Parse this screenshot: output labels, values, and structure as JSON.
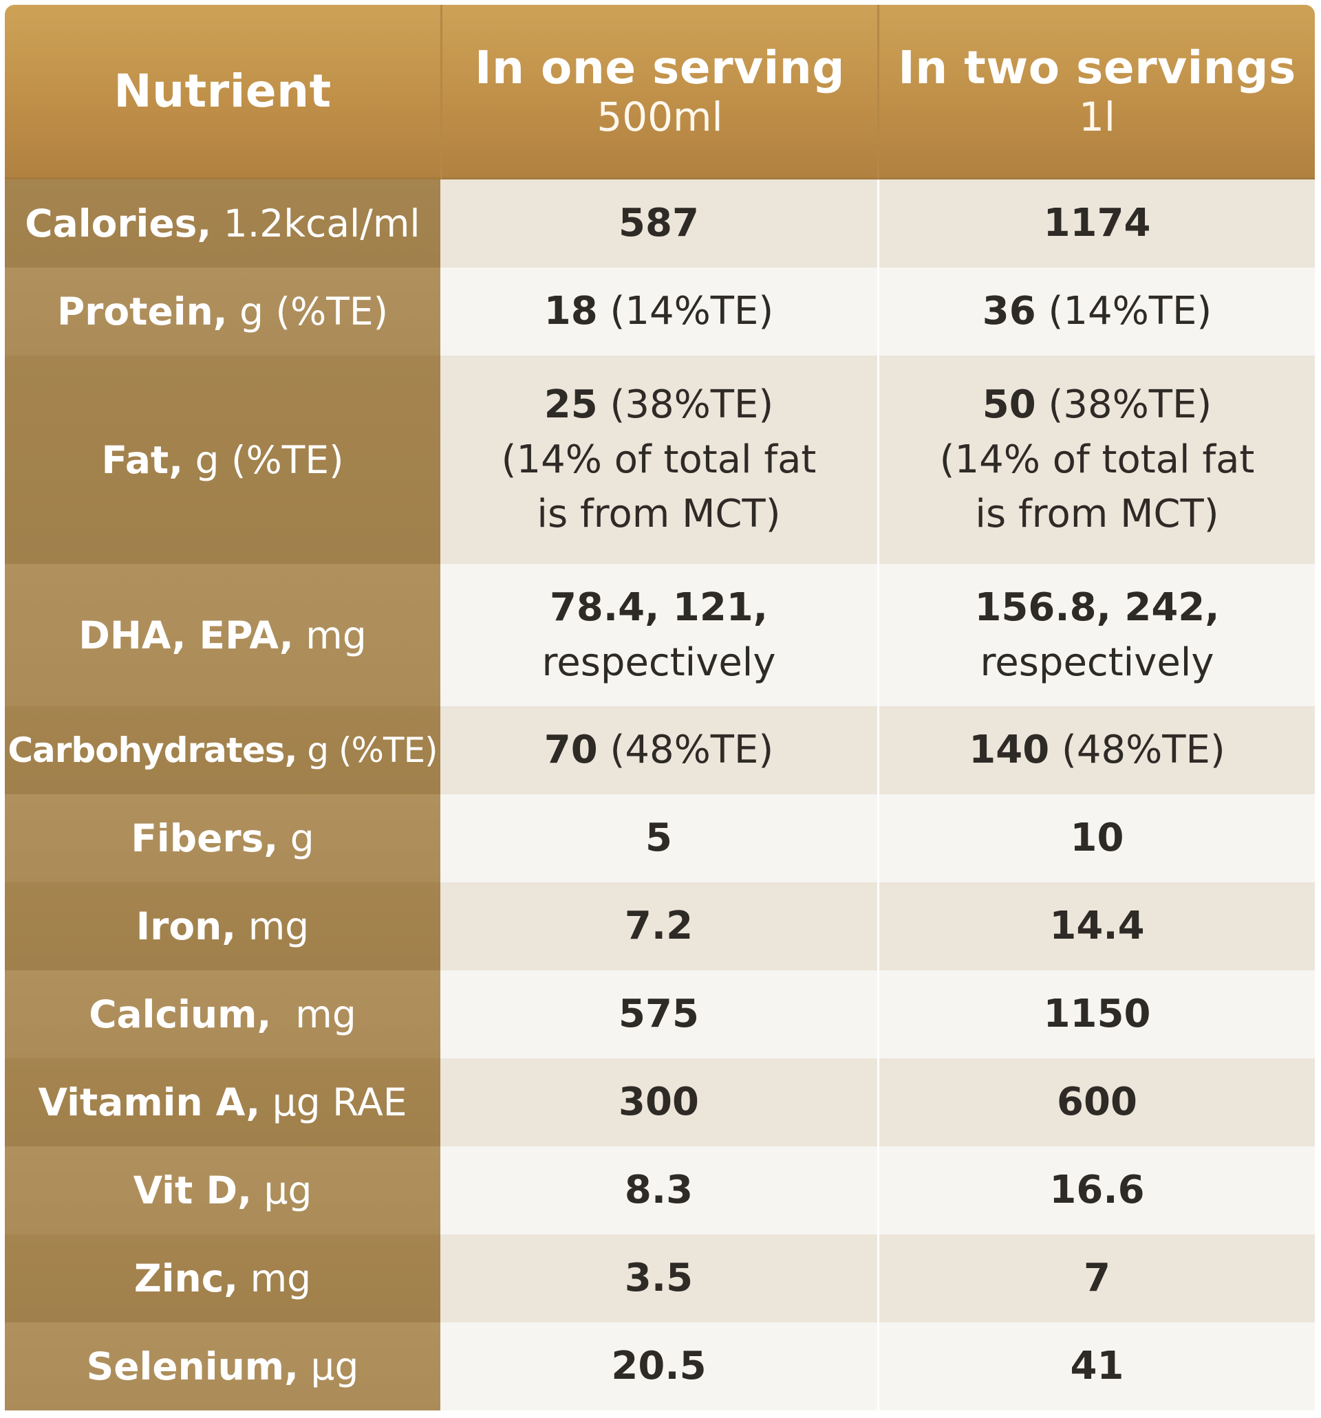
{
  "header": {
    "col0": "Nutrient",
    "col1_title": "In one serving",
    "col1_sub": "500ml",
    "col2_title": "In two servings",
    "col2_sub": "1l"
  },
  "rows": [
    {
      "label_bold": "Calories,",
      "label_unit": " 1.2kcal/ml",
      "v1_bold": "587",
      "v1_rest": "",
      "v2_bold": "1174",
      "v2_rest": ""
    },
    {
      "label_bold": "Protein,",
      "label_unit": " g (%TE)",
      "v1_bold": "18",
      "v1_rest": " (14%TE)",
      "v2_bold": "36",
      "v2_rest": " (14%TE)"
    },
    {
      "label_bold": "Fat,",
      "label_unit": " g (%TE)",
      "v1_bold": "25",
      "v1_rest": " (38%TE)",
      "v1_line2": "(14% of total fat",
      "v1_line3": "is from MCT)",
      "v2_bold": "50",
      "v2_rest": " (38%TE)",
      "v2_line2": "(14% of total fat",
      "v2_line3": "is from MCT)"
    },
    {
      "label_bold": "DHA, EPA,",
      "label_unit": " mg",
      "v1_bold": "78.4, 121,",
      "v1_line2": "respectively",
      "v2_bold": "156.8, 242,",
      "v2_line2": "respectively"
    },
    {
      "label_bold": "Carbohydrates,",
      "label_unit": " g (%TE)",
      "v1_bold": "70",
      "v1_rest": " (48%TE)",
      "v2_bold": "140",
      "v2_rest": " (48%TE)"
    },
    {
      "label_bold": "Fibers,",
      "label_unit": " g",
      "v1_bold": "5",
      "v1_rest": "",
      "v2_bold": "10",
      "v2_rest": ""
    },
    {
      "label_bold": "Iron,",
      "label_unit": " mg",
      "v1_bold": "7.2",
      "v1_rest": "",
      "v2_bold": "14.4",
      "v2_rest": ""
    },
    {
      "label_bold": "Calcium,",
      "label_unit": "  mg",
      "v1_bold": "575",
      "v1_rest": "",
      "v2_bold": "1150",
      "v2_rest": ""
    },
    {
      "label_bold": "Vitamin A,",
      "label_unit": " μg RAE",
      "v1_bold": "300",
      "v1_rest": "",
      "v2_bold": "600",
      "v2_rest": ""
    },
    {
      "label_bold": "Vit D,",
      "label_unit": " μg",
      "v1_bold": "8.3",
      "v1_rest": "",
      "v2_bold": "16.6",
      "v2_rest": ""
    },
    {
      "label_bold": "Zinc,",
      "label_unit": " mg",
      "v1_bold": "3.5",
      "v1_rest": "",
      "v2_bold": "7",
      "v2_rest": ""
    },
    {
      "label_bold": "Selenium,",
      "label_unit": " μg",
      "v1_bold": "20.5",
      "v1_rest": "",
      "v2_bold": "41",
      "v2_rest": ""
    }
  ]
}
